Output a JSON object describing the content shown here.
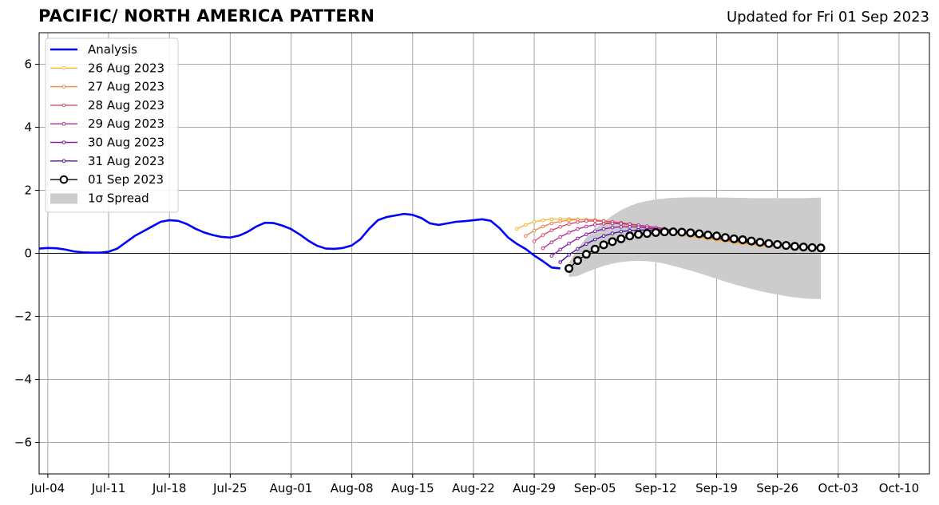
{
  "title": "PACIFIC/ NORTH AMERICA PATTERN",
  "updated": "Updated for Fri 01 Sep 2023",
  "chart_data": {
    "type": "line",
    "title": "PACIFIC/ NORTH AMERICA PATTERN",
    "subtitle": "Updated for Fri 01 Sep 2023",
    "xlabel": "",
    "ylabel": "",
    "x_unit": "days since Jul-03 2023",
    "xlim": [
      0,
      102.5
    ],
    "ylim": [
      -7,
      7
    ],
    "x_ticks": [
      {
        "x": 1,
        "label": "Jul-04"
      },
      {
        "x": 8,
        "label": "Jul-11"
      },
      {
        "x": 15,
        "label": "Jul-18"
      },
      {
        "x": 22,
        "label": "Jul-25"
      },
      {
        "x": 29,
        "label": "Aug-01"
      },
      {
        "x": 36,
        "label": "Aug-08"
      },
      {
        "x": 43,
        "label": "Aug-15"
      },
      {
        "x": 50,
        "label": "Aug-22"
      },
      {
        "x": 57,
        "label": "Aug-29"
      },
      {
        "x": 64,
        "label": "Sep-05"
      },
      {
        "x": 71,
        "label": "Sep-12"
      },
      {
        "x": 78,
        "label": "Sep-19"
      },
      {
        "x": 85,
        "label": "Sep-26"
      },
      {
        "x": 92,
        "label": "Oct-03"
      },
      {
        "x": 99,
        "label": "Oct-10"
      }
    ],
    "y_ticks": [
      {
        "y": 6,
        "label": "6"
      },
      {
        "y": 4,
        "label": "4"
      },
      {
        "y": 2,
        "label": "2"
      },
      {
        "y": 0,
        "label": "0"
      },
      {
        "y": -2,
        "label": "−2"
      },
      {
        "y": -4,
        "label": "−4"
      },
      {
        "y": -6,
        "label": "−6"
      }
    ],
    "grid": true,
    "zero_line": true,
    "legend_position": "top-left",
    "analysis": {
      "name": "Analysis",
      "color": "#0000ff",
      "x": [
        0,
        1,
        2,
        3,
        4,
        5,
        6,
        7,
        8,
        9,
        10,
        11,
        12,
        13,
        14,
        15,
        16,
        17,
        18,
        19,
        20,
        21,
        22,
        23,
        24,
        25,
        26,
        27,
        28,
        29,
        30,
        31,
        32,
        33,
        34,
        35,
        36,
        37,
        38,
        39,
        40,
        41,
        42,
        43,
        44,
        45,
        46,
        47,
        48,
        49,
        50,
        51,
        52,
        53,
        54,
        55,
        56,
        57,
        58,
        59,
        60
      ],
      "y": [
        0.15,
        0.17,
        0.16,
        0.12,
        0.06,
        0.03,
        0.02,
        0.02,
        0.05,
        0.15,
        0.35,
        0.55,
        0.7,
        0.85,
        1.0,
        1.05,
        1.03,
        0.93,
        0.78,
        0.66,
        0.58,
        0.52,
        0.5,
        0.56,
        0.68,
        0.85,
        0.97,
        0.96,
        0.88,
        0.77,
        0.6,
        0.4,
        0.24,
        0.15,
        0.14,
        0.17,
        0.25,
        0.45,
        0.78,
        1.05,
        1.15,
        1.2,
        1.25,
        1.22,
        1.12,
        0.95,
        0.9,
        0.95,
        1.0,
        1.02,
        1.05,
        1.08,
        1.03,
        0.8,
        0.5,
        0.3,
        0.14,
        -0.07,
        -0.25,
        -0.45,
        -0.48
      ]
    },
    "forecasts": [
      {
        "name": "26 Aug 2023",
        "color": "#f5b731",
        "x_start": 55,
        "values": [
          0.78,
          0.9,
          1.0,
          1.05,
          1.08,
          1.09,
          1.09,
          1.08,
          1.06,
          1.03,
          1.0,
          0.96,
          0.92,
          0.88,
          0.84,
          0.79,
          0.74,
          0.69,
          0.64,
          0.59,
          0.54,
          0.5,
          0.46,
          0.42,
          0.38,
          0.34,
          0.31,
          0.28,
          0.25,
          0.22,
          0.2
        ]
      },
      {
        "name": "27 Aug 2023",
        "color": "#ec8a48",
        "x_start": 56,
        "values": [
          0.55,
          0.72,
          0.85,
          0.95,
          1.01,
          1.05,
          1.07,
          1.07,
          1.06,
          1.03,
          1.0,
          0.96,
          0.92,
          0.88,
          0.84,
          0.79,
          0.74,
          0.69,
          0.64,
          0.59,
          0.54,
          0.49,
          0.45,
          0.41,
          0.37,
          0.33,
          0.3,
          0.27,
          0.24,
          0.21
        ]
      },
      {
        "name": "28 Aug 2023",
        "color": "#d9506b",
        "x_start": 57,
        "values": [
          0.38,
          0.58,
          0.73,
          0.84,
          0.93,
          0.99,
          1.02,
          1.03,
          1.02,
          1.0,
          0.97,
          0.93,
          0.89,
          0.85,
          0.81,
          0.76,
          0.71,
          0.66,
          0.61,
          0.56,
          0.51,
          0.47,
          0.43,
          0.39,
          0.35,
          0.32,
          0.29,
          0.26,
          0.23
        ]
      },
      {
        "name": "29 Aug 2023",
        "color": "#b43193",
        "x_start": 58,
        "values": [
          0.16,
          0.35,
          0.52,
          0.66,
          0.77,
          0.85,
          0.91,
          0.94,
          0.95,
          0.94,
          0.92,
          0.89,
          0.86,
          0.82,
          0.78,
          0.73,
          0.68,
          0.63,
          0.58,
          0.53,
          0.49,
          0.45,
          0.41,
          0.37,
          0.33,
          0.3,
          0.27,
          0.24
        ]
      },
      {
        "name": "30 Aug 2023",
        "color": "#8a1fae",
        "x_start": 59,
        "values": [
          -0.08,
          0.12,
          0.31,
          0.47,
          0.6,
          0.7,
          0.77,
          0.82,
          0.84,
          0.84,
          0.83,
          0.8,
          0.77,
          0.73,
          0.69,
          0.65,
          0.61,
          0.57,
          0.53,
          0.49,
          0.45,
          0.41,
          0.37,
          0.34,
          0.31,
          0.28,
          0.25
        ]
      },
      {
        "name": "31 Aug 2023",
        "color": "#4d0fa0",
        "x_start": 60,
        "values": [
          -0.28,
          -0.05,
          0.14,
          0.3,
          0.44,
          0.55,
          0.63,
          0.69,
          0.72,
          0.74,
          0.74,
          0.73,
          0.71,
          0.68,
          0.65,
          0.61,
          0.57,
          0.53,
          0.49,
          0.45,
          0.41,
          0.38,
          0.35,
          0.32,
          0.29,
          0.26
        ]
      }
    ],
    "current": {
      "name": "01 Sep 2023",
      "color": "#000000",
      "x_start": 61,
      "values": [
        -0.48,
        -0.23,
        -0.03,
        0.13,
        0.27,
        0.37,
        0.46,
        0.55,
        0.6,
        0.63,
        0.66,
        0.68,
        0.68,
        0.67,
        0.65,
        0.62,
        0.58,
        0.55,
        0.5,
        0.46,
        0.43,
        0.39,
        0.35,
        0.31,
        0.28,
        0.25,
        0.22,
        0.2,
        0.18,
        0.17
      ]
    },
    "spread": {
      "name": "1σ Spread",
      "color": "#cccccc",
      "x_start": 61,
      "upper": [
        -0.3,
        0.15,
        0.5,
        0.78,
        1.0,
        1.2,
        1.37,
        1.5,
        1.6,
        1.66,
        1.71,
        1.74,
        1.76,
        1.77,
        1.78,
        1.78,
        1.78,
        1.77,
        1.77,
        1.76,
        1.76,
        1.75,
        1.75,
        1.75,
        1.75,
        1.75,
        1.75,
        1.75,
        1.76,
        1.77
      ],
      "lower": [
        -0.75,
        -0.72,
        -0.6,
        -0.5,
        -0.4,
        -0.33,
        -0.28,
        -0.25,
        -0.24,
        -0.25,
        -0.28,
        -0.33,
        -0.4,
        -0.47,
        -0.55,
        -0.63,
        -0.72,
        -0.81,
        -0.9,
        -0.98,
        -1.06,
        -1.13,
        -1.2,
        -1.26,
        -1.31,
        -1.36,
        -1.4,
        -1.43,
        -1.45,
        -1.45
      ]
    }
  }
}
